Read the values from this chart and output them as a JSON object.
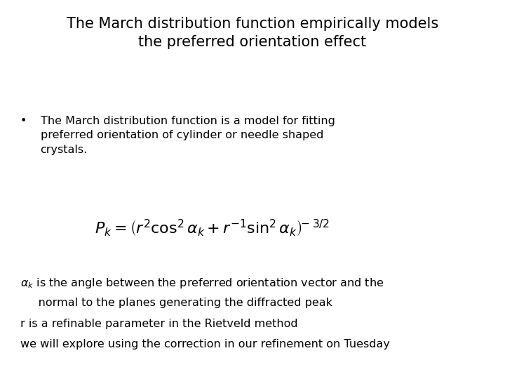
{
  "title_line1": "The March distribution function empirically models",
  "title_line2": "the preferred orientation effect",
  "bullet_text": "The March distribution function is a model for fitting\npreferred orientation of cylinder or needle shaped\ncrystals.",
  "note1a": "$\\alpha_k$ is the angle between the preferred orientation vector and the",
  "note1b": "     normal to the planes generating the diffracted peak",
  "note2": "r is a refinable parameter in the Rietveld method",
  "note3": "we will explore using the correction in our refinement on Tuesday",
  "bg_color": "#ffffff",
  "text_color": "#000000",
  "title_fontsize": 15,
  "body_fontsize": 11.5,
  "formula_fontsize": 16
}
